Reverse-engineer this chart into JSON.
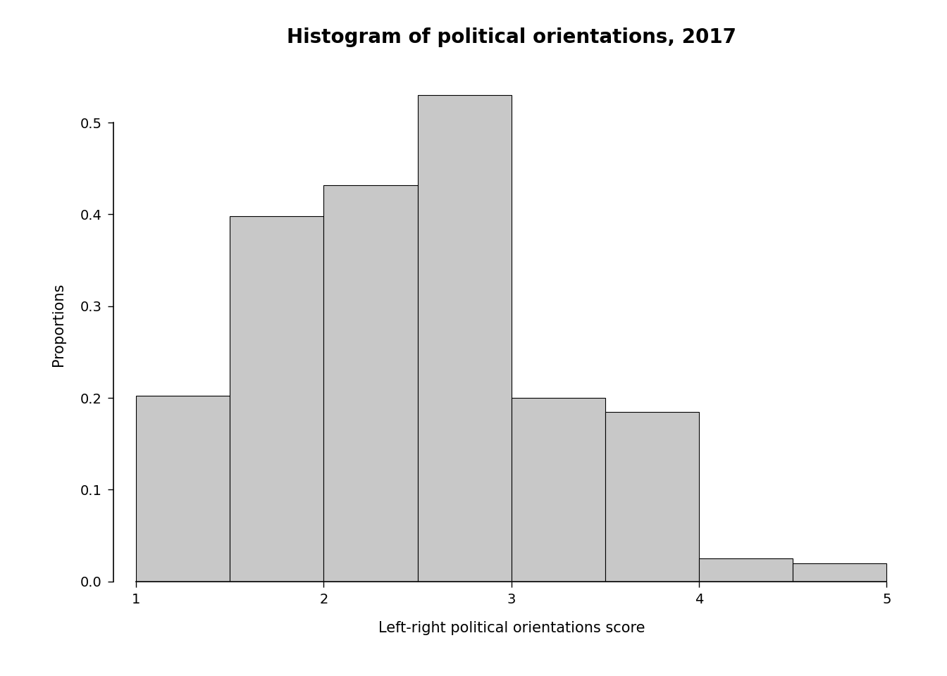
{
  "title": "Histogram of political orientations, 2017",
  "xlabel": "Left-right political orientations score",
  "ylabel": "Proportions",
  "bar_left_edges": [
    1.0,
    1.5,
    2.0,
    2.5,
    3.0,
    3.5,
    4.0,
    4.5
  ],
  "bar_heights": [
    0.202,
    0.398,
    0.432,
    0.53,
    0.2,
    0.185,
    0.025,
    0.02
  ],
  "bar_width": 0.5,
  "bar_color": "#c8c8c8",
  "bar_edgecolor": "#000000",
  "xlim": [
    0.88,
    5.12
  ],
  "ylim": [
    0.0,
    0.56
  ],
  "xticks": [
    1,
    2,
    3,
    4,
    5
  ],
  "yticks": [
    0.0,
    0.1,
    0.2,
    0.3,
    0.4,
    0.5
  ],
  "title_fontsize": 20,
  "label_fontsize": 15,
  "tick_fontsize": 14,
  "background_color": "#ffffff"
}
